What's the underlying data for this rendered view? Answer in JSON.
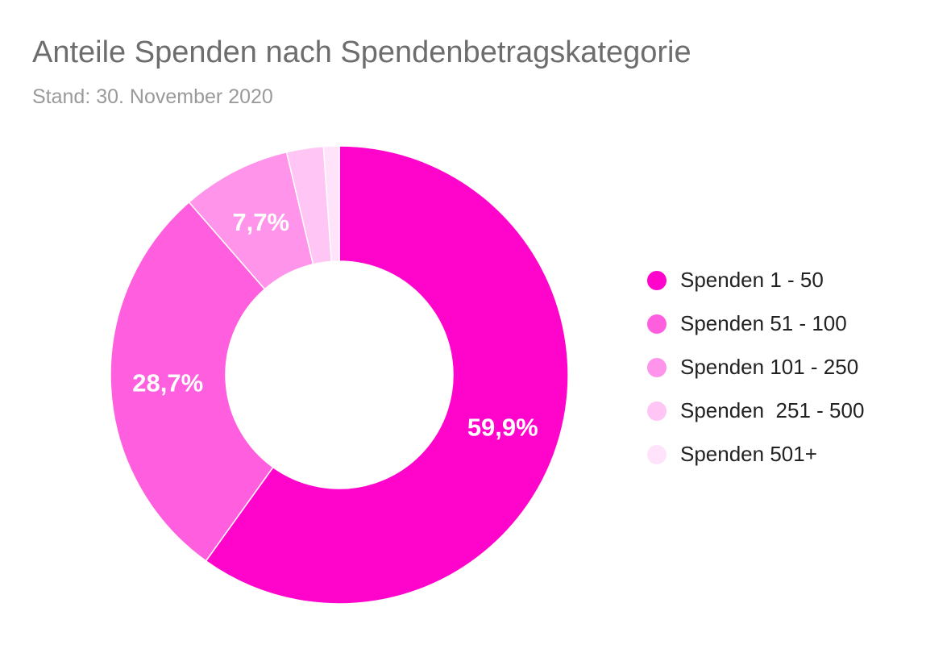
{
  "header": {
    "title": "Anteile Spenden nach Spendenbetragskategorie",
    "subtitle": "Stand: 30. November 2020"
  },
  "chart_data": {
    "type": "pie",
    "donut": true,
    "unit": "%",
    "categories": [
      "Spenden 1 - 50",
      "Spenden 51 - 100",
      "Spenden 101 - 250",
      "Spenden  251 - 500",
      "Spenden 501+"
    ],
    "values": [
      59.9,
      28.7,
      7.7,
      2.6,
      1.1
    ],
    "data_labels": [
      "59,9%",
      "28,7%",
      "7,7%",
      "",
      ""
    ],
    "colors": [
      "#ff05cc",
      "#ff5fdf",
      "#ff94ea",
      "#ffc5f4",
      "#ffe3fa"
    ],
    "legend_position": "right",
    "start_angle": "12 o'clock",
    "direction": "clockwise"
  }
}
